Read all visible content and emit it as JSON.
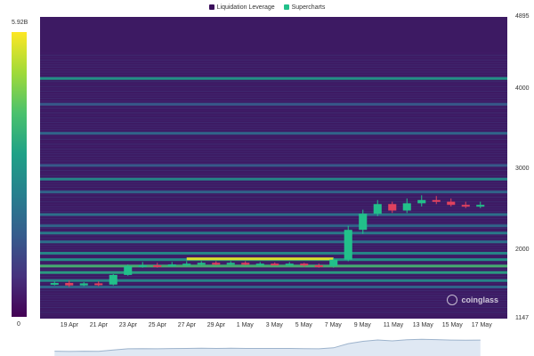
{
  "legend": {
    "items": [
      {
        "label": "Liquidation Leverage",
        "color": "#3b0f5c"
      },
      {
        "label": "Supercharts",
        "color": "#22c08a"
      }
    ]
  },
  "colorbar": {
    "max_label": "5.92B",
    "min_label": "0",
    "colors": [
      "#fde725",
      "#a0da39",
      "#4ac16d",
      "#1fa187",
      "#277f8e",
      "#365c8d",
      "#46327e",
      "#440154"
    ]
  },
  "watermark": {
    "text": "coinglass",
    "icon": "coinglass-logo-icon"
  },
  "colors": {
    "background": "#3d1a63",
    "up_candle": "#22c08a",
    "down_candle": "#e0415e"
  },
  "chart_data": {
    "type": "heatmap",
    "title": "",
    "xlabel": "",
    "ylabel": "",
    "ylim": [
      1147,
      4895
    ],
    "y_ticks": [
      "4895",
      "4000",
      "3000",
      "2000",
      "1147"
    ],
    "y_tick_values": [
      4895,
      4000,
      3000,
      2000,
      1147
    ],
    "x_ticks": [
      "19 Apr",
      "21 Apr",
      "23 Apr",
      "25 Apr",
      "27 Apr",
      "29 Apr",
      "1 May",
      "3 May",
      "5 May",
      "7 May",
      "9 May",
      "11 May",
      "13 May",
      "15 May",
      "17 May"
    ],
    "colorbar_range": [
      0,
      "5.92B"
    ],
    "heat_bands": [
      {
        "price": 4130,
        "intensity": 0.55
      },
      {
        "price": 3810,
        "intensity": 0.3
      },
      {
        "price": 3450,
        "intensity": 0.35
      },
      {
        "price": 3050,
        "intensity": 0.3
      },
      {
        "price": 2880,
        "intensity": 0.5
      },
      {
        "price": 2720,
        "intensity": 0.35
      },
      {
        "price": 2440,
        "intensity": 0.4
      },
      {
        "price": 2300,
        "intensity": 0.35
      },
      {
        "price": 2210,
        "intensity": 0.45
      },
      {
        "price": 2100,
        "intensity": 0.4
      },
      {
        "price": 1960,
        "intensity": 0.5
      },
      {
        "price": 1880,
        "intensity": 0.55
      },
      {
        "price": 1800,
        "intensity": 0.7
      },
      {
        "price": 1720,
        "intensity": 0.6
      },
      {
        "price": 1620,
        "intensity": 0.5
      },
      {
        "price": 1540,
        "intensity": 0.35
      }
    ],
    "hot_segments": [
      {
        "price": 1890,
        "intensity": 0.95
      }
    ],
    "series": [
      {
        "type": "candlestick",
        "x": [
          "18 Apr",
          "19 Apr",
          "20 Apr",
          "21 Apr",
          "22 Apr",
          "23 Apr",
          "24 Apr",
          "25 Apr",
          "26 Apr",
          "27 Apr",
          "28 Apr",
          "29 Apr",
          "30 Apr",
          "1 May",
          "2 May",
          "3 May",
          "4 May",
          "5 May",
          "6 May",
          "7 May",
          "8 May",
          "9 May",
          "10 May",
          "11 May",
          "12 May",
          "13 May",
          "14 May",
          "15 May",
          "16 May",
          "17 May"
        ],
        "open": [
          1580,
          1590,
          1560,
          1585,
          1570,
          1690,
          1800,
          1810,
          1800,
          1820,
          1830,
          1840,
          1830,
          1840,
          1830,
          1830,
          1825,
          1830,
          1810,
          1800,
          1880,
          2250,
          2450,
          2570,
          2490,
          2580,
          2620,
          2600,
          2560,
          2540
        ],
        "close": [
          1590,
          1560,
          1585,
          1570,
          1690,
          1800,
          1810,
          1800,
          1820,
          1830,
          1840,
          1830,
          1840,
          1830,
          1830,
          1825,
          1830,
          1810,
          1800,
          1880,
          2250,
          2450,
          2570,
          2490,
          2580,
          2620,
          2600,
          2560,
          2540,
          2560
        ],
        "high": [
          1610,
          1620,
          1600,
          1610,
          1700,
          1820,
          1850,
          1840,
          1850,
          1860,
          1860,
          1860,
          1860,
          1860,
          1850,
          1845,
          1850,
          1840,
          1830,
          1900,
          2300,
          2500,
          2620,
          2600,
          2640,
          2680,
          2670,
          2640,
          2600,
          2600
        ],
        "low": [
          1560,
          1540,
          1550,
          1550,
          1560,
          1680,
          1780,
          1780,
          1790,
          1800,
          1810,
          1810,
          1810,
          1810,
          1800,
          1810,
          1800,
          1790,
          1780,
          1780,
          1860,
          2200,
          2420,
          2460,
          2460,
          2540,
          2570,
          2540,
          2520,
          2520
        ]
      }
    ]
  }
}
